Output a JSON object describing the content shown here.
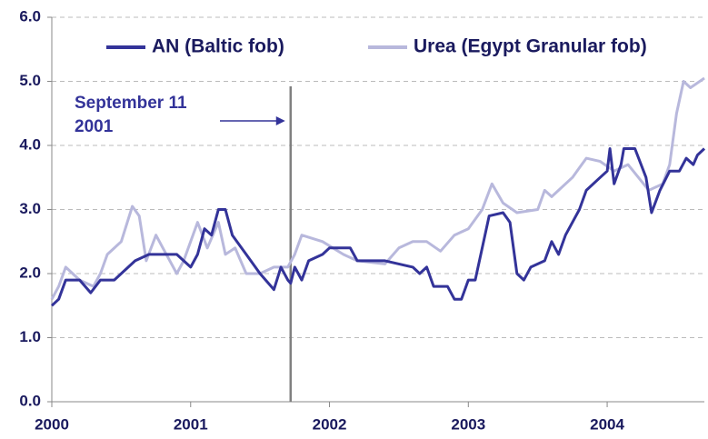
{
  "chart_data": {
    "type": "line",
    "xlim": [
      2000,
      2004.7
    ],
    "xticks": [
      2000,
      2001,
      2002,
      2003,
      2004
    ],
    "ylim": [
      0,
      6
    ],
    "yticks": [
      {
        "value": 0,
        "label": "0.0"
      },
      {
        "value": 1,
        "label": "1.0"
      },
      {
        "value": 2,
        "label": "2.0"
      },
      {
        "value": 3,
        "label": "3.0"
      },
      {
        "value": 4,
        "label": "4.0"
      },
      {
        "value": 5,
        "label": "5.0"
      },
      {
        "value": 6,
        "label": "6.0"
      }
    ],
    "grid": true,
    "legend": "top",
    "annotations": [
      {
        "lines": [
          "September  11",
          "2001"
        ],
        "x": 2001.72
      }
    ],
    "series": [
      {
        "name": "AN (Baltic fob)",
        "color": "#333399",
        "x": [
          2000,
          2000.05,
          2000.1,
          2000.2,
          2000.28,
          2000.35,
          2000.45,
          2000.5,
          2000.6,
          2000.7,
          2000.9,
          2000.95,
          2001.0,
          2001.05,
          2001.1,
          2001.15,
          2001.2,
          2001.25,
          2001.3,
          2001.4,
          2001.5,
          2001.6,
          2001.65,
          2001.7,
          2001.72,
          2001.75,
          2001.8,
          2001.85,
          2001.95,
          2002.0,
          2002.15,
          2002.2,
          2002.4,
          2002.6,
          2002.65,
          2002.7,
          2002.75,
          2002.85,
          2002.9,
          2002.95,
          2003.0,
          2003.05,
          2003.15,
          2003.25,
          2003.3,
          2003.35,
          2003.4,
          2003.45,
          2003.55,
          2003.6,
          2003.65,
          2003.7,
          2003.8,
          2003.85,
          2003.95,
          2004.0,
          2004.02,
          2004.05,
          2004.1,
          2004.12,
          2004.2,
          2004.28,
          2004.32,
          2004.38,
          2004.45,
          2004.52,
          2004.57,
          2004.62,
          2004.65,
          2004.7
        ],
        "values": [
          1.5,
          1.6,
          1.9,
          1.9,
          1.7,
          1.9,
          1.9,
          2.0,
          2.2,
          2.3,
          2.3,
          2.2,
          2.1,
          2.3,
          2.7,
          2.6,
          3.0,
          3.0,
          2.6,
          2.3,
          2.0,
          1.75,
          2.1,
          1.9,
          1.85,
          2.1,
          1.9,
          2.2,
          2.3,
          2.4,
          2.4,
          2.2,
          2.2,
          2.1,
          2.0,
          2.1,
          1.8,
          1.8,
          1.6,
          1.6,
          1.9,
          1.9,
          2.9,
          2.95,
          2.8,
          2.0,
          1.9,
          2.1,
          2.2,
          2.5,
          2.3,
          2.6,
          3.0,
          3.3,
          3.5,
          3.6,
          3.95,
          3.4,
          3.7,
          3.95,
          3.95,
          3.5,
          2.95,
          3.3,
          3.6,
          3.6,
          3.8,
          3.7,
          3.85,
          3.95
        ]
      },
      {
        "name": "Urea (Egypt Granular fob)",
        "color": "#b8b8dc",
        "x": [
          2000,
          2000.05,
          2000.1,
          2000.2,
          2000.3,
          2000.35,
          2000.4,
          2000.5,
          2000.58,
          2000.63,
          2000.68,
          2000.75,
          2000.8,
          2000.9,
          2000.95,
          2001.05,
          2001.12,
          2001.2,
          2001.25,
          2001.32,
          2001.4,
          2001.5,
          2001.6,
          2001.7,
          2001.75,
          2001.8,
          2001.95,
          2002.1,
          2002.2,
          2002.4,
          2002.5,
          2002.6,
          2002.7,
          2002.8,
          2002.9,
          2003.0,
          2003.1,
          2003.17,
          2003.25,
          2003.35,
          2003.5,
          2003.55,
          2003.6,
          2003.75,
          2003.85,
          2003.95,
          2004.05,
          2004.15,
          2004.3,
          2004.4,
          2004.45,
          2004.5,
          2004.55,
          2004.6,
          2004.7
        ],
        "values": [
          1.6,
          1.8,
          2.1,
          1.9,
          1.8,
          2.0,
          2.3,
          2.5,
          3.05,
          2.9,
          2.2,
          2.6,
          2.4,
          2.0,
          2.2,
          2.8,
          2.4,
          2.8,
          2.3,
          2.4,
          2.0,
          2.0,
          2.1,
          2.1,
          2.3,
          2.6,
          2.5,
          2.3,
          2.2,
          2.15,
          2.4,
          2.5,
          2.5,
          2.35,
          2.6,
          2.7,
          3.0,
          3.4,
          3.1,
          2.95,
          3.0,
          3.3,
          3.2,
          3.5,
          3.8,
          3.75,
          3.6,
          3.7,
          3.3,
          3.4,
          3.7,
          4.5,
          5.0,
          4.9,
          5.05
        ]
      }
    ]
  }
}
